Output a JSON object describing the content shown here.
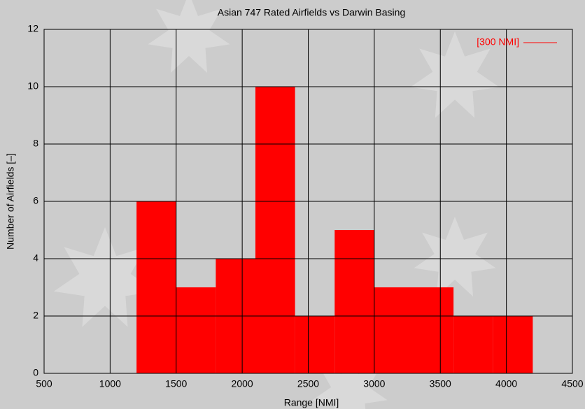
{
  "chart_data": {
    "type": "histogram",
    "title": "Asian 747 Rated Airfields vs Darwin Basing",
    "x_label": "Range [NMI]",
    "y_label": "Number of Airfields  [–]",
    "bins": [
      1200,
      1500,
      1800,
      2100,
      2400,
      2700,
      3000,
      3300,
      3600,
      3900,
      4200
    ],
    "series": [
      {
        "name": "[300 NMI]",
        "color": "#ff0000",
        "values": [
          6,
          3,
          4,
          10,
          2,
          5,
          3,
          3,
          2,
          2
        ]
      }
    ],
    "xlim": [
      500,
      4500
    ],
    "xticks": [
      500,
      1000,
      1500,
      2000,
      2500,
      3000,
      3500,
      4000,
      4500
    ],
    "ylim": [
      0,
      12
    ],
    "yticks": [
      0,
      2,
      4,
      6,
      8,
      10,
      12
    ],
    "grid": true,
    "legend": "top-right"
  }
}
